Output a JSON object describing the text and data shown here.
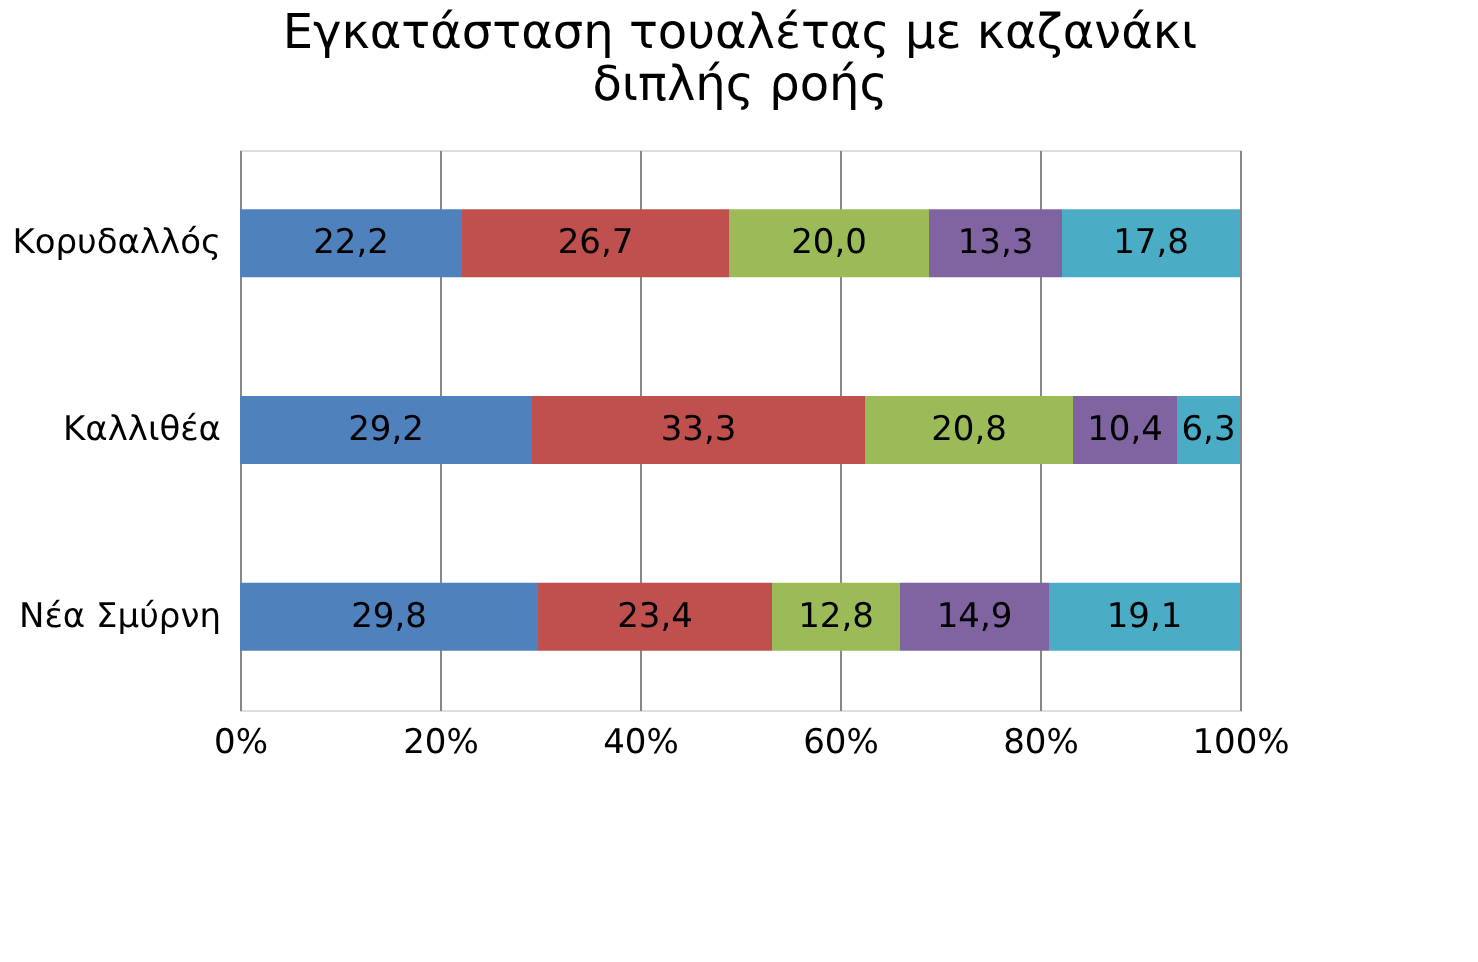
{
  "chart_data": {
    "type": "bar",
    "orientation": "horizontal",
    "stacked": true,
    "title": "Εγκατάσταση τουαλέτας με καζανάκι\nδιπλής ροής",
    "categories": [
      "Κορυδαλλός",
      "Καλλιθέα",
      "Νέα Σμύρνη"
    ],
    "series": [
      {
        "color": "#4f81bd",
        "values": [
          22.2,
          29.2,
          29.8
        ],
        "value_labels": [
          "22,2",
          "29,2",
          "29,8"
        ]
      },
      {
        "color": "#c0504d",
        "values": [
          26.7,
          33.3,
          23.4
        ],
        "value_labels": [
          "26,7",
          "33,3",
          "23,4"
        ]
      },
      {
        "color": "#9bbb59",
        "values": [
          20.0,
          20.8,
          12.8
        ],
        "value_labels": [
          "20,0",
          "20,8",
          "12,8"
        ]
      },
      {
        "color": "#8064a2",
        "values": [
          13.3,
          10.4,
          14.9
        ],
        "value_labels": [
          "13,3",
          "10,4",
          "14,9"
        ]
      },
      {
        "color": "#4bacc6",
        "values": [
          17.8,
          6.3,
          19.1
        ],
        "value_labels": [
          "17,8",
          "6,3",
          "19,1"
        ]
      }
    ],
    "xlim": [
      0,
      100
    ],
    "xticks": [
      {
        "value": 0,
        "label": "0%"
      },
      {
        "value": 20,
        "label": "20%"
      },
      {
        "value": 40,
        "label": "40%"
      },
      {
        "value": 60,
        "label": "60%"
      },
      {
        "value": 80,
        "label": "80%"
      },
      {
        "value": 100,
        "label": "100%"
      }
    ],
    "grid": "x",
    "legend": false
  }
}
